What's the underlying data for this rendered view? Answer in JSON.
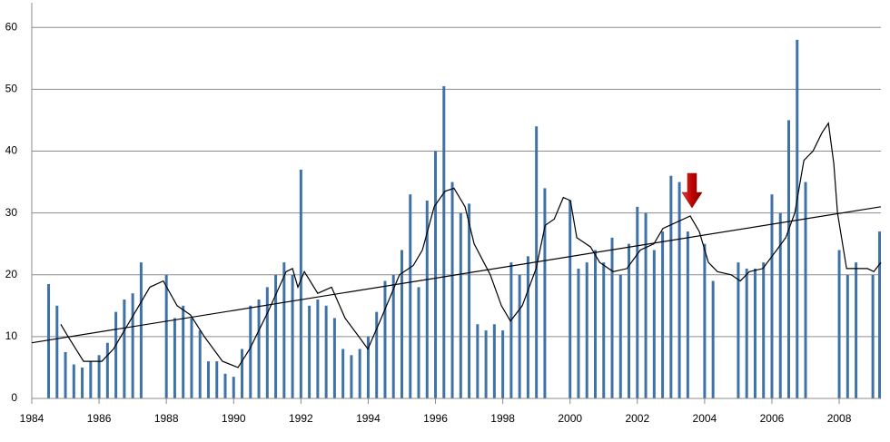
{
  "chart_data": {
    "type": "bar",
    "color": "#3f73a8",
    "xlim": [
      1984,
      2009.24
    ],
    "xticks": [
      1984,
      1986,
      1988,
      1990,
      1992,
      1994,
      1996,
      1998,
      2000,
      2002,
      2004,
      2006,
      2008
    ],
    "ylim": [
      0,
      64
    ],
    "yticks": [
      0,
      10,
      20,
      30,
      40,
      50,
      60
    ],
    "grid": true,
    "x": [
      1984.5,
      1984.75,
      1985,
      1985.25,
      1985.5,
      1985.75,
      1986,
      1986.25,
      1986.5,
      1986.75,
      1987,
      1987.25,
      1987.5,
      1987.75,
      1988,
      1988.25,
      1988.5,
      1988.75,
      1989,
      1989.25,
      1989.5,
      1989.75,
      1990,
      1990.25,
      1990.5,
      1990.75,
      1991,
      1991.25,
      1991.5,
      1991.75,
      1992,
      1992.25,
      1992.5,
      1992.75,
      1993,
      1993.25,
      1993.5,
      1993.75,
      1994,
      1994.25,
      1994.5,
      1994.75,
      1995,
      1995.25,
      1995.5,
      1995.75,
      1996,
      1996.25,
      1996.5,
      1996.75,
      1997,
      1997.25,
      1997.5,
      1997.75,
      1998,
      1998.25,
      1998.5,
      1998.75,
      1999,
      1999.25,
      1999.5,
      1999.75,
      2000,
      2000.25,
      2000.5,
      2000.75,
      2001,
      2001.25,
      2001.5,
      2001.75,
      2002,
      2002.25,
      2002.5,
      2002.75,
      2003,
      2003.25,
      2003.5,
      2003.75,
      2004,
      2004.25,
      2004.5,
      2004.75,
      2005,
      2005.25,
      2005.5,
      2005.75,
      2006,
      2006.25,
      2006.5,
      2006.75,
      2007,
      2007.25,
      2007.5,
      2007.75,
      2008,
      2008.25,
      2008.5,
      2008.75,
      2009,
      2009.2
    ],
    "values": [
      18.5,
      15,
      7.5,
      5.5,
      5,
      6,
      7,
      9,
      14,
      16,
      17,
      22,
      null,
      null,
      20,
      13,
      15,
      13,
      11,
      6,
      6,
      4,
      3.5,
      8,
      15,
      16,
      18,
      20,
      22,
      20,
      37,
      15,
      16,
      15,
      13,
      8,
      7,
      8,
      10,
      14,
      19,
      20,
      24,
      33,
      18,
      32,
      40,
      50.5,
      35,
      30,
      31.5,
      12,
      11,
      12,
      11,
      22,
      20,
      23,
      44,
      34,
      null,
      null,
      32,
      21,
      22,
      24,
      22,
      26,
      20,
      25,
      31,
      30,
      24,
      27,
      36,
      35,
      27,
      null,
      25,
      19,
      null,
      null,
      22,
      21,
      21,
      22,
      33,
      30,
      45,
      58,
      35,
      null,
      null,
      null,
      24,
      20,
      22,
      null,
      20,
      27
    ],
    "lines": [
      {
        "color": "#000000",
        "x": [
          1984.86,
          1985.08,
          1985.54,
          1986.08,
          1986.43,
          1986.97,
          1987.51,
          1987.91,
          1988.32,
          1988.72,
          1989.13,
          1989.67,
          1990.13,
          1990.48,
          1991.02,
          1991.56,
          1991.75,
          1991.91,
          1992.1,
          1992.5,
          1992.91,
          1993.31,
          1993.72,
          1993.99,
          1994.39,
          1994.93,
          1995.34,
          1995.61,
          1995.96,
          1996.28,
          1996.55,
          1996.88,
          1997.15,
          1997.63,
          1997.96,
          1998.23,
          1998.58,
          1998.99,
          1999.26,
          1999.53,
          1999.8,
          2000.01,
          2000.2,
          2000.61,
          2000.88,
          2001.28,
          2001.69,
          2002.09,
          2002.49,
          2002.76,
          2003.17,
          2003.57,
          2003.84,
          2004.11,
          2004.38,
          2004.79,
          2005.06,
          2005.33,
          2005.73,
          2006.14,
          2006.41,
          2006.68,
          2006.95,
          2007.22,
          2007.49,
          2007.68,
          2007.84,
          2007.95,
          2008.22,
          2008.43,
          2008.84,
          2009.03,
          2009.24
        ],
        "values": [
          12,
          10,
          6,
          6,
          8,
          13,
          18,
          19,
          15,
          13.5,
          10,
          6,
          5,
          8,
          14,
          20.5,
          21,
          18,
          20.5,
          17,
          18,
          13,
          10,
          8,
          13,
          20,
          21.5,
          24,
          31,
          33.5,
          34,
          31,
          25,
          20,
          15,
          12.5,
          15,
          21,
          28,
          29,
          32.5,
          32,
          26,
          24.5,
          22,
          20.5,
          21,
          24,
          25,
          27.5,
          28.5,
          29.5,
          27,
          22,
          20.5,
          20,
          19,
          20.5,
          21,
          24,
          26,
          30,
          38.5,
          40,
          43,
          44.5,
          38,
          30,
          21,
          21,
          21,
          20.5,
          22
        ]
      },
      {
        "color": "#000000",
        "x": [
          1984,
          2009.24
        ],
        "values": [
          9,
          31
        ]
      }
    ]
  }
}
